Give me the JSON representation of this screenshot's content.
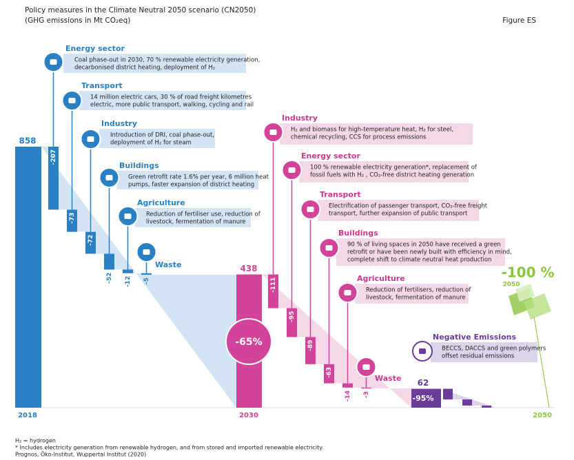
{
  "chart_data": {
    "type": "waterfall",
    "title": "Policy measures in the Climate Neutral 2050 scenario (CN2050)",
    "subtitle": "(GHG emissions in Mt CO₂eq)",
    "figure_label": "Figure ES",
    "stages": [
      {
        "year": "2018",
        "total": 858,
        "color": "#2a80c4",
        "light": "#d3e5f4",
        "text_color": "#2a80c4",
        "steps": [
          {
            "sector": "Energy sector",
            "value": -207,
            "lines": [
              "Coal phase-out in 2030, 70 % renewable electricity generation,",
              "decarbonised district heating, deployment of H₂"
            ]
          },
          {
            "sector": "Transport",
            "value": -73,
            "lines": [
              "14 million electric cars, 30 % of road freight kilometres",
              "electric, more public transport, walking, cycling and rail"
            ]
          },
          {
            "sector": "Industry",
            "value": -72,
            "lines": [
              "Introduction of DRI, coal phase-out,",
              "deployment of H₂ for steam"
            ]
          },
          {
            "sector": "Buildings",
            "value": -52,
            "lines": [
              "Green retrofit rate 1.6% per year, 6 million heat",
              "pumps, faster expansion of district heating"
            ]
          },
          {
            "sector": "Agriculture",
            "value": -12,
            "lines": [
              "Reduction of fertiliser use, reduction of",
              "livestock, fermentation of manure"
            ]
          },
          {
            "sector": "Waste",
            "value": -5,
            "lines": []
          }
        ]
      },
      {
        "year": "2030",
        "total": 438,
        "reduction": "-65%",
        "color": "#d2449a",
        "light": "#f4d8e8",
        "text_color": "#c8388e",
        "steps": [
          {
            "sector": "Industry",
            "value": -111,
            "lines": [
              "H₂ and biomass for high-temperature heat, H₂ for steel,",
              "chemical recycling, CCS for process emissions"
            ]
          },
          {
            "sector": "Energy sector",
            "value": -95,
            "lines": [
              "100 % renewable electricity generation*, replacement of",
              "fossil fuels with H₂ , CO₂-free district heating generation"
            ]
          },
          {
            "sector": "Transport",
            "value": -89,
            "lines": [
              "Electrification of passenger transport, CO₂-free freight",
              "transport, further expansion of public transport"
            ]
          },
          {
            "sector": "Buildings",
            "value": -63,
            "lines": [
              "90 % of living spaces in 2050 have received a green",
              "retrofit or have been newly built with efficiency in mind,",
              "complete shift to climate neutral heat production"
            ]
          },
          {
            "sector": "Agriculture",
            "value": -14,
            "lines": [
              "Reduction of fertilisers, reduction of",
              "livestock, fermentation of manure"
            ]
          },
          {
            "sector": "Waste",
            "value": -3,
            "lines": []
          }
        ]
      },
      {
        "total": 62,
        "reduction": "-95%",
        "color": "#6a3d9a",
        "light": "#dcd4ea",
        "text_color": "#6a3d9a",
        "steps": [
          {
            "sector": "Negative Emissions",
            "value": -35,
            "lines": [
              "BECCS, DACCS and green polymers",
              "offset residual emissions"
            ]
          },
          {
            "value": -20
          },
          {
            "value": -7
          }
        ]
      }
    ],
    "end": {
      "year": "2050",
      "reduction": "-100 %",
      "color": "#8cc63f"
    },
    "footnotes": [
      "H₂ = hydrogen",
      "* Includes electricity generation from renewable hydrogen, and from stored and imported renewable electricity.",
      "Prognos, Öko-Institut, Wuppertal Institut (2020)"
    ]
  }
}
